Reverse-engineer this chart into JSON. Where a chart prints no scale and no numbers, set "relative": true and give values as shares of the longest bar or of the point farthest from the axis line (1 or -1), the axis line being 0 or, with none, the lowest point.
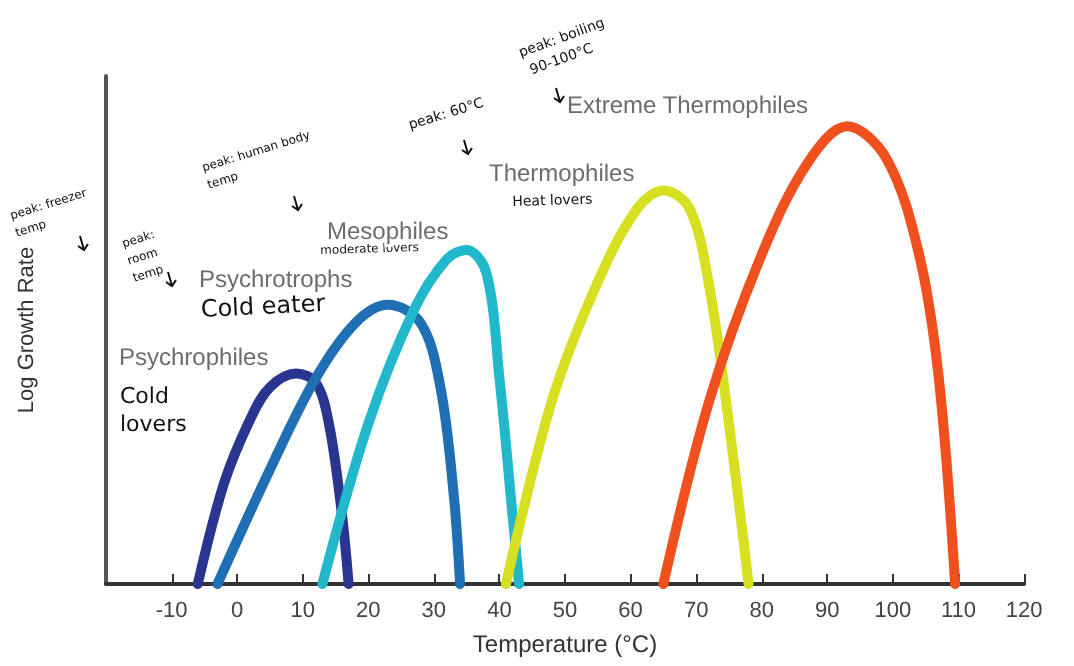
{
  "chart_data": {
    "type": "line",
    "xlabel": "Temperature (°C)",
    "ylabel": "Log Growth Rate",
    "relative": true,
    "xlim": [
      -20,
      120
    ],
    "xticks": [
      -10,
      0,
      10,
      20,
      30,
      40,
      50,
      60,
      70,
      80,
      90,
      100,
      110,
      120
    ],
    "grid": false,
    "legend": false,
    "marker": "none",
    "line_style": "solid",
    "series": [
      {
        "name": "Psychrophiles",
        "color": "#2a3590",
        "x": [
          -6,
          -2,
          2,
          5,
          9,
          12,
          14,
          16,
          17
        ],
        "values": [
          0,
          0.22,
          0.36,
          0.43,
          0.46,
          0.44,
          0.35,
          0.15,
          0
        ]
      },
      {
        "name": "Psychrotrophs",
        "color": "#1f6fb5",
        "x": [
          -3,
          5,
          12,
          18,
          23,
          28,
          31,
          33,
          34
        ],
        "values": [
          0,
          0.25,
          0.45,
          0.57,
          0.61,
          0.57,
          0.43,
          0.2,
          0
        ]
      },
      {
        "name": "Mesophiles",
        "color": "#22b8cc",
        "x": [
          13,
          20,
          27,
          32,
          35,
          38,
          40,
          42,
          43
        ],
        "values": [
          0,
          0.35,
          0.6,
          0.71,
          0.73,
          0.68,
          0.45,
          0.15,
          0
        ]
      },
      {
        "name": "Thermophiles",
        "color": "#d6e021",
        "x": [
          41,
          48,
          55,
          61,
          65,
          69,
          72,
          75,
          78
        ],
        "values": [
          0,
          0.4,
          0.66,
          0.82,
          0.86,
          0.82,
          0.65,
          0.35,
          0
        ]
      },
      {
        "name": "Extreme Thermophiles",
        "color": "#f0501e",
        "x": [
          65,
          72,
          80,
          87,
          93,
          99,
          104,
          107,
          109.5
        ],
        "values": [
          0,
          0.4,
          0.72,
          0.92,
          1,
          0.93,
          0.72,
          0.45,
          0
        ]
      }
    ],
    "annotations": [
      "peak: freezer temp",
      "peak: room temp",
      "Cold eater",
      "Cold lovers",
      "peak: human body temp",
      "moderate lovers",
      "peak: 60°C",
      "Heat lovers",
      "peak: boiling 90-100°C"
    ]
  }
}
